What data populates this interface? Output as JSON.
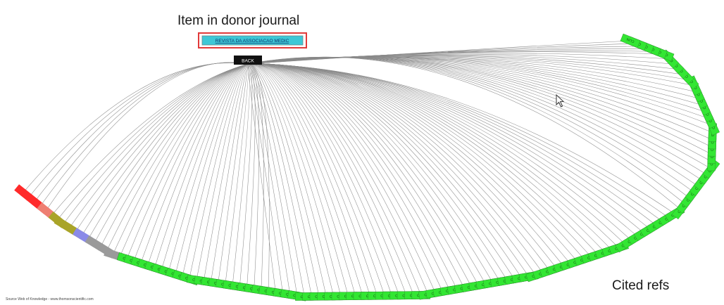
{
  "annotations": {
    "donor_item_label": "Item in donor journal",
    "cited_refs_label": "Cited refs"
  },
  "diagram": {
    "hub_label": "BACK",
    "donor_title": "REVISTA DA ASSOCIACAO MEDIC",
    "footer_note": "Source Web of Knowledge - www.thomsonscientific.com",
    "cited_ref_group_label": "CLIN",
    "colors": {
      "background": "#ffffff",
      "edge": "#8a8a8a",
      "donor_fill": "#3ec7d6",
      "donor_border": "#e23a3a",
      "hub_fill": "#111111",
      "clin_green": "#33e633",
      "red_group": "#ff2a2a",
      "salmon_group": "#ee7f72",
      "olive_group": "#a9a428",
      "blue_group": "#8a8ae8",
      "gray_group": "#9a9a9a"
    },
    "cited_ref_groups": [
      {
        "name": "red",
        "count": 4
      },
      {
        "name": "salmon",
        "count": 2
      },
      {
        "name": "olive",
        "count": 4
      },
      {
        "name": "blue",
        "count": 2
      },
      {
        "name": "gray",
        "count": 5
      },
      {
        "name": "clin",
        "count": 110
      }
    ]
  }
}
